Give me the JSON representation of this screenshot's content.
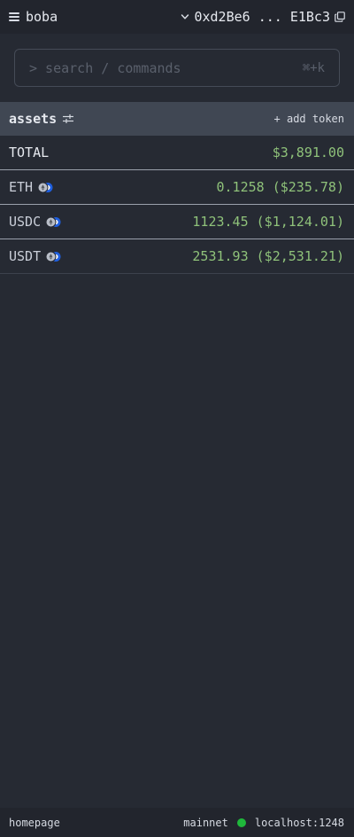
{
  "header": {
    "app_name": "boba",
    "account_address": "0xd2Be6 ... E1Bc3"
  },
  "search": {
    "placeholder": "> search / commands",
    "shortcut": "⌘+k"
  },
  "assets": {
    "title": "assets",
    "add_token_label": "+ add token",
    "total_label": "TOTAL",
    "total_value": "$3,891.00",
    "tokens": [
      {
        "symbol": "ETH",
        "balance": "0.1258 ($235.78)"
      },
      {
        "symbol": "USDC",
        "balance": "1123.45 ($1,124.01)"
      },
      {
        "symbol": "USDT",
        "balance": "2531.93 ($2,531.21)"
      }
    ]
  },
  "footer": {
    "page": "homepage",
    "network": "mainnet",
    "rpc": "localhost:1248",
    "status_color": "#1fb83b"
  },
  "colors": {
    "background": "#262a33",
    "value_green": "#8fc27a",
    "header_band": "#404753"
  }
}
